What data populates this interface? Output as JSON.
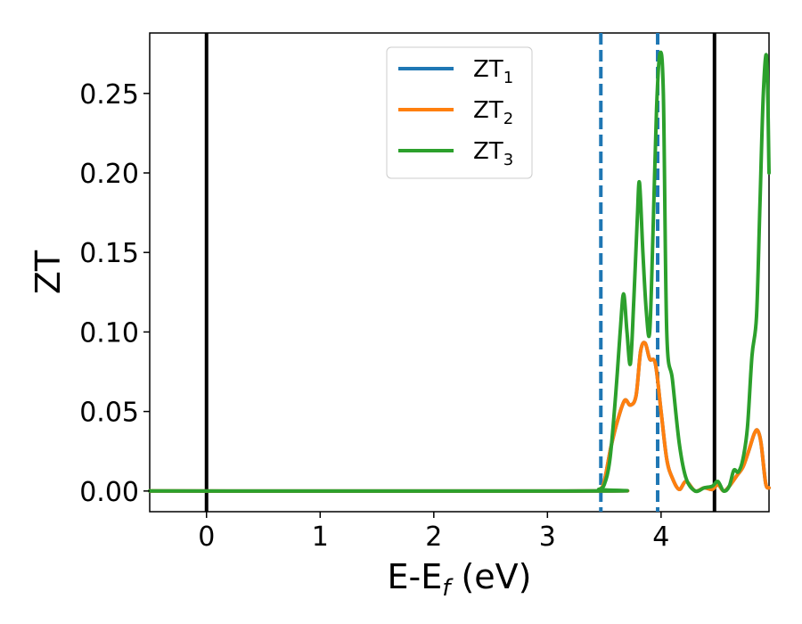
{
  "chart_data": {
    "type": "line",
    "xlabel_main": "E-E",
    "xlabel_sub": "f",
    "xlabel_unit": " (eV)",
    "ylabel": "ZT",
    "xlim": [
      -0.5,
      4.95
    ],
    "ylim": [
      -0.013,
      0.288
    ],
    "xticks": [
      0,
      1,
      2,
      3,
      4
    ],
    "xtick_labels": [
      "0",
      "1",
      "2",
      "3",
      "4"
    ],
    "yticks": [
      0.0,
      0.05,
      0.1,
      0.15,
      0.2,
      0.25
    ],
    "ytick_labels": [
      "0.00",
      "0.05",
      "0.10",
      "0.15",
      "0.20",
      "0.25"
    ],
    "grid": false,
    "legend_position": "top-center",
    "vlines_solid": [
      0.0,
      4.47
    ],
    "vlines_dashed": [
      3.47,
      3.97
    ],
    "vline_solid_color": "#000000",
    "vline_dashed_color": "#1f77b4",
    "series": [
      {
        "name": "ZT",
        "sub": "1",
        "color": "#1f77b4",
        "x": [
          -0.5,
          3.4,
          3.46,
          3.5,
          3.56,
          3.62,
          3.68,
          3.73,
          3.78,
          3.82,
          3.86,
          3.9,
          3.95,
          4.0,
          4.05,
          4.1,
          4.16,
          4.22,
          4.3,
          4.38,
          4.45,
          4.5,
          4.55,
          4.6,
          4.67,
          4.72,
          4.77,
          4.82,
          4.85,
          4.88,
          4.92,
          4.95
        ],
        "y": [
          0.0,
          0.0,
          0.001,
          0.006,
          0.028,
          0.045,
          0.057,
          0.054,
          0.06,
          0.088,
          0.093,
          0.083,
          0.08,
          0.05,
          0.02,
          0.008,
          0.001,
          0.006,
          0.0,
          0.002,
          0.001,
          0.004,
          0.0,
          0.003,
          0.01,
          0.015,
          0.025,
          0.036,
          0.038,
          0.03,
          0.005,
          0.002
        ]
      },
      {
        "name": "ZT",
        "sub": "2",
        "color": "#ff7f0e",
        "x": [
          -0.5,
          3.4,
          3.46,
          3.5,
          3.56,
          3.62,
          3.68,
          3.73,
          3.78,
          3.82,
          3.86,
          3.9,
          3.95,
          4.0,
          4.05,
          4.1,
          4.16,
          4.22,
          4.3,
          4.38,
          4.45,
          4.5,
          4.55,
          4.6,
          4.67,
          4.72,
          4.77,
          4.82,
          4.85,
          4.88,
          4.92,
          4.95
        ],
        "y": [
          0.0,
          0.0,
          0.001,
          0.006,
          0.028,
          0.045,
          0.057,
          0.054,
          0.06,
          0.088,
          0.093,
          0.083,
          0.08,
          0.05,
          0.02,
          0.008,
          0.001,
          0.006,
          0.0,
          0.002,
          0.001,
          0.004,
          0.0,
          0.003,
          0.01,
          0.015,
          0.025,
          0.036,
          0.038,
          0.03,
          0.005,
          0.002
        ]
      },
      {
        "name": "ZT",
        "sub": "3",
        "color": "#2ca02c",
        "x": [
          -0.5,
          3.4,
          3.45,
          3.5,
          3.55,
          3.6,
          3.64,
          3.67,
          3.7,
          3.73,
          3.76,
          3.79,
          3.81,
          3.84,
          3.87,
          3.9,
          3.93,
          3.96,
          3.99,
          4.02,
          4.05,
          4.1,
          4.16,
          4.22,
          4.3,
          4.38,
          4.45,
          4.5,
          4.55,
          4.6,
          4.64,
          4.68,
          4.72,
          4.76,
          4.8,
          4.84,
          4.87,
          4.9,
          4.93,
          4.95
        ],
        "y": [
          0.0,
          0.0,
          0.001,
          0.004,
          0.02,
          0.06,
          0.1,
          0.124,
          0.1,
          0.08,
          0.12,
          0.17,
          0.194,
          0.15,
          0.113,
          0.1,
          0.165,
          0.24,
          0.275,
          0.25,
          0.1,
          0.07,
          0.03,
          0.008,
          0.0,
          0.002,
          0.003,
          0.006,
          0.0,
          0.003,
          0.013,
          0.012,
          0.02,
          0.04,
          0.085,
          0.11,
          0.18,
          0.25,
          0.272,
          0.2
        ]
      }
    ]
  }
}
